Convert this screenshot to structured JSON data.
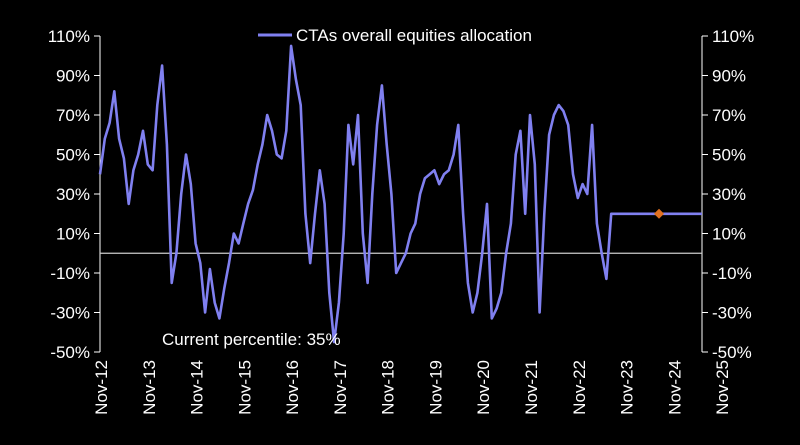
{
  "chart_data": {
    "type": "line",
    "title": "",
    "xlabel": "",
    "ylabel": "",
    "ylim": [
      -50,
      110
    ],
    "yticks": [
      "-50%",
      "-30%",
      "-10%",
      "10%",
      "30%",
      "50%",
      "70%",
      "90%",
      "110%"
    ],
    "xticks": [
      "Nov-12",
      "Nov-13",
      "Nov-14",
      "Nov-15",
      "Nov-16",
      "Nov-17",
      "Nov-18",
      "Nov-19",
      "Nov-20",
      "Nov-21",
      "Nov-22",
      "Nov-23",
      "Nov-24",
      "Nov-25"
    ],
    "zero_line": 0,
    "legend_position": "top-center",
    "series": [
      {
        "name": "CTAs overall equities allocation",
        "color": "#8080f0",
        "x": [
          2012.9,
          2013.0,
          2013.1,
          2013.2,
          2013.3,
          2013.4,
          2013.5,
          2013.6,
          2013.7,
          2013.8,
          2013.9,
          2014.0,
          2014.1,
          2014.2,
          2014.3,
          2014.4,
          2014.5,
          2014.6,
          2014.7,
          2014.8,
          2014.9,
          2015.0,
          2015.1,
          2015.2,
          2015.3,
          2015.4,
          2015.5,
          2015.6,
          2015.7,
          2015.8,
          2015.9,
          2016.0,
          2016.1,
          2016.2,
          2016.3,
          2016.4,
          2016.5,
          2016.6,
          2016.7,
          2016.8,
          2016.9,
          2017.0,
          2017.1,
          2017.2,
          2017.3,
          2017.4,
          2017.5,
          2017.6,
          2017.7,
          2017.8,
          2017.9,
          2018.0,
          2018.1,
          2018.2,
          2018.3,
          2018.4,
          2018.5,
          2018.6,
          2018.7,
          2018.8,
          2018.9,
          2019.0,
          2019.1,
          2019.2,
          2019.3,
          2019.4,
          2019.5,
          2019.6,
          2019.7,
          2019.8,
          2019.9,
          2020.0,
          2020.1,
          2020.2,
          2020.3,
          2020.4,
          2020.5,
          2020.6,
          2020.7,
          2020.8,
          2020.9,
          2021.0,
          2021.1,
          2021.2,
          2021.3,
          2021.4,
          2021.5,
          2021.6,
          2021.7,
          2021.8,
          2021.9,
          2022.0,
          2022.1,
          2022.2,
          2022.3,
          2022.4,
          2022.5,
          2022.6,
          2022.7,
          2022.8,
          2022.9,
          2023.0,
          2023.1,
          2023.2,
          2023.3,
          2023.4,
          2023.5,
          2023.6,
          2023.7,
          2023.8,
          2023.9,
          2024.0,
          2024.1,
          2024.2,
          2024.3,
          2024.4,
          2024.5,
          2024.6,
          2024.7,
          2024.8,
          2024.9,
          2025.0,
          2025.1,
          2025.2,
          2025.3,
          2025.4,
          2025.5
        ],
        "values": [
          40,
          58,
          66,
          82,
          58,
          48,
          25,
          42,
          50,
          62,
          45,
          42,
          75,
          95,
          55,
          -15,
          0,
          30,
          50,
          35,
          5,
          -5,
          -30,
          -8,
          -25,
          -33,
          -18,
          -5,
          10,
          5,
          15,
          25,
          32,
          45,
          55,
          70,
          62,
          50,
          48,
          62,
          105,
          88,
          75,
          20,
          -5,
          20,
          42,
          25,
          -20,
          -45,
          -25,
          10,
          65,
          45,
          70,
          10,
          -15,
          30,
          65,
          85,
          55,
          30,
          -10,
          -5,
          0,
          10,
          15,
          30,
          38,
          40,
          42,
          35,
          40,
          42,
          50,
          65,
          20,
          -15,
          -30,
          -20,
          0,
          25,
          -33,
          -28,
          -20,
          0,
          15,
          50,
          62,
          20,
          70,
          45,
          -30,
          20,
          60,
          70,
          75,
          72,
          65,
          40,
          28,
          35,
          30,
          65,
          15,
          0,
          -13,
          20,
          20,
          20,
          20,
          20,
          20,
          20,
          20,
          20,
          20,
          20,
          20,
          20,
          20,
          20,
          20,
          20,
          20,
          20,
          20
        ]
      }
    ],
    "current_point": {
      "x": 2024.6,
      "y": 20,
      "color": "#e07020"
    },
    "annotation": "Current percentile: 35%"
  }
}
